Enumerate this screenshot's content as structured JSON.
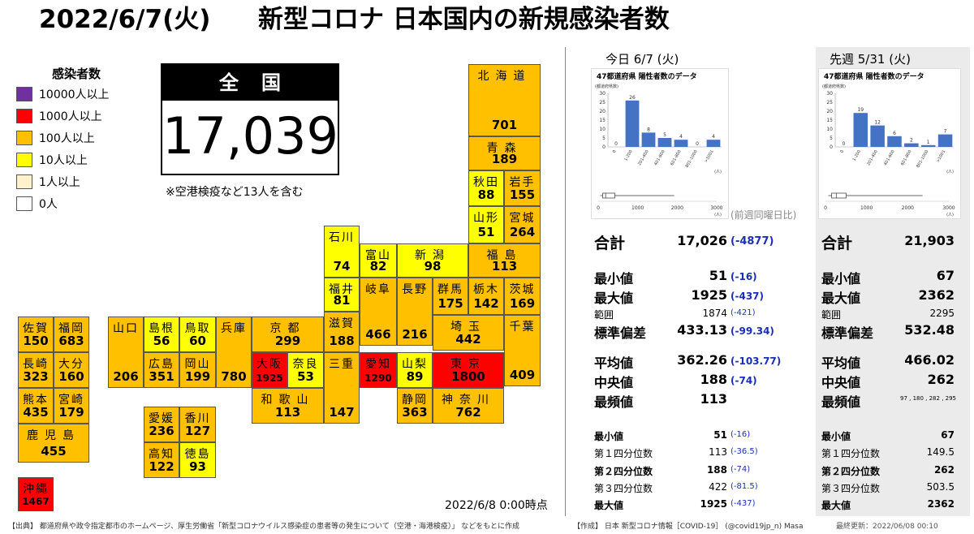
{
  "title": {
    "date": "2022/6/7(火)",
    "text": "新型コロナ 日本国内の新規感染者数"
  },
  "legend": {
    "title": "感染者数",
    "items": [
      {
        "label": "10000人以上",
        "color": "#7030a0"
      },
      {
        "label": "1000人以上",
        "color": "#ff0000"
      },
      {
        "label": "100人以上",
        "color": "#ffc000"
      },
      {
        "label": "10人以上",
        "color": "#ffff00"
      },
      {
        "label": "1人以上",
        "color": "#fff2cc"
      },
      {
        "label": "0人",
        "color": "#ffffff"
      }
    ]
  },
  "national": {
    "header": "全国",
    "value": "17,039",
    "note": "※空港検疫など13人を含む"
  },
  "timestamp": "2022/6/8 0:00時点",
  "prefectures": [
    {
      "name": "北海道",
      "value": "701"
    },
    {
      "name": "青森",
      "value": "189"
    },
    {
      "name": "秋田",
      "value": "88"
    },
    {
      "name": "岩手",
      "value": "155"
    },
    {
      "name": "山形",
      "value": "51"
    },
    {
      "name": "宮城",
      "value": "264"
    },
    {
      "name": "石川",
      "value": "74"
    },
    {
      "name": "富山",
      "value": "82"
    },
    {
      "name": "新潟",
      "value": "98"
    },
    {
      "name": "福島",
      "value": "113"
    },
    {
      "name": "福井",
      "value": "81"
    },
    {
      "name": "岐阜",
      "value": "466"
    },
    {
      "name": "長野",
      "value": "216"
    },
    {
      "name": "群馬",
      "value": "175"
    },
    {
      "name": "栃木",
      "value": "142"
    },
    {
      "name": "茨城",
      "value": "169"
    },
    {
      "name": "佐賀",
      "value": "150"
    },
    {
      "name": "福岡",
      "value": "683"
    },
    {
      "name": "山口",
      "value": "206"
    },
    {
      "name": "島根",
      "value": "56"
    },
    {
      "name": "鳥取",
      "value": "60"
    },
    {
      "name": "兵庫",
      "value": "780"
    },
    {
      "name": "京都",
      "value": "299"
    },
    {
      "name": "滋賀",
      "value": "188"
    },
    {
      "name": "埼玉",
      "value": "442"
    },
    {
      "name": "千葉",
      "value": "409"
    },
    {
      "name": "長崎",
      "value": "323"
    },
    {
      "name": "大分",
      "value": "160"
    },
    {
      "name": "広島",
      "value": "351"
    },
    {
      "name": "岡山",
      "value": "199"
    },
    {
      "name": "大阪",
      "value": "1925"
    },
    {
      "name": "奈良",
      "value": "53"
    },
    {
      "name": "三重",
      "value": "147"
    },
    {
      "name": "愛知",
      "value": "1290"
    },
    {
      "name": "山梨",
      "value": "89"
    },
    {
      "name": "東京",
      "value": "1800"
    },
    {
      "name": "熊本",
      "value": "435"
    },
    {
      "name": "宮崎",
      "value": "179"
    },
    {
      "name": "和歌山",
      "value": "113"
    },
    {
      "name": "静岡",
      "value": "363"
    },
    {
      "name": "神奈川",
      "value": "762"
    },
    {
      "name": "愛媛",
      "value": "236"
    },
    {
      "name": "香川",
      "value": "127"
    },
    {
      "name": "鹿児島",
      "value": "455"
    },
    {
      "name": "高知",
      "value": "122"
    },
    {
      "name": "徳島",
      "value": "93"
    },
    {
      "name": "沖縄",
      "value": "1467"
    }
  ],
  "today": {
    "header": "今日 6/7 (火)",
    "chart_title": "47都道府県 陽性者数のデータ",
    "comparison_label": "(前週同曜日比)",
    "total": {
      "label": "合計",
      "value": "17,026",
      "diff": "(-4877)"
    },
    "min": {
      "label": "最小値",
      "value": "51",
      "diff": "(-16)"
    },
    "max": {
      "label": "最大値",
      "value": "1925",
      "diff": "(-437)"
    },
    "range": {
      "label": "範囲",
      "value": "1874",
      "diff": "(-421)"
    },
    "std": {
      "label": "標準偏差",
      "value": "433.13",
      "diff": "(-99.34)"
    },
    "mean": {
      "label": "平均値",
      "value": "362.26",
      "diff": "(-103.77)"
    },
    "median": {
      "label": "中央値",
      "value": "188",
      "diff": "(-74)"
    },
    "mode": {
      "label": "最頻値",
      "value": "113"
    },
    "q_min": {
      "label": "最小値",
      "value": "51",
      "diff": "(-16)"
    },
    "q1": {
      "label": "第１四分位数",
      "value": "113",
      "diff": "(-36.5)"
    },
    "q2": {
      "label": "第２四分位数",
      "value": "188",
      "diff": "(-74)"
    },
    "q3": {
      "label": "第３四分位数",
      "value": "422",
      "diff": "(-81.5)"
    },
    "q_max": {
      "label": "最大値",
      "value": "1925",
      "diff": "(-437)"
    }
  },
  "last_week": {
    "header": "先週 5/31 (火)",
    "chart_title": "47都道府県 陽性者数のデータ",
    "total": {
      "label": "合計",
      "value": "21,903"
    },
    "min": {
      "label": "最小値",
      "value": "67"
    },
    "max": {
      "label": "最大値",
      "value": "2362"
    },
    "range": {
      "label": "範囲",
      "value": "2295"
    },
    "std": {
      "label": "標準偏差",
      "value": "532.48"
    },
    "mean": {
      "label": "平均値",
      "value": "466.02"
    },
    "median": {
      "label": "中央値",
      "value": "262"
    },
    "mode": {
      "label": "最頻値",
      "value": "97 , 180 , 282 , 295"
    },
    "q_min": {
      "label": "最小値",
      "value": "67"
    },
    "q1": {
      "label": "第１四分位数",
      "value": "149.5"
    },
    "q2": {
      "label": "第２四分位数",
      "value": "262"
    },
    "q3": {
      "label": "第３四分位数",
      "value": "503.5"
    },
    "q_max": {
      "label": "最大値",
      "value": "2362"
    }
  },
  "chart_data": [
    {
      "type": "bar",
      "ylabel": "(都道府県数)",
      "xlabel": "(人)",
      "categories": [
        "0",
        "1-200",
        "201-400",
        "401-600",
        "601-800",
        "801-1000",
        ">1001"
      ],
      "values": [
        0,
        26,
        8,
        5,
        4,
        0,
        4
      ],
      "ylim": [
        0,
        30
      ],
      "yticks": [
        "0",
        "5",
        "10",
        "15",
        "20",
        "25",
        "30"
      ],
      "boxplot": {
        "min": 51,
        "q1": 113,
        "median": 188,
        "q3": 422,
        "max": 1925,
        "xlim": [
          0,
          3000
        ],
        "xticks": [
          "0",
          "1000",
          "2000",
          "3000"
        ]
      }
    },
    {
      "type": "bar",
      "ylabel": "(都道府県数)",
      "xlabel": "(人)",
      "categories": [
        "0",
        "1-200",
        "201-400",
        "401-600",
        "601-800",
        "801-1000",
        ">1001"
      ],
      "values": [
        0,
        19,
        12,
        6,
        2,
        1,
        7
      ],
      "ylim": [
        0,
        30
      ],
      "yticks": [
        "0",
        "5",
        "10",
        "15",
        "20",
        "25",
        "30"
      ],
      "boxplot": {
        "min": 67,
        "q1": 149.5,
        "median": 262,
        "q3": 503.5,
        "max": 2362,
        "xlim": [
          0,
          3000
        ],
        "xticks": [
          "0",
          "1000",
          "2000",
          "3000"
        ]
      }
    }
  ],
  "footer": {
    "source": "【出典】 都道府県や政令指定都市のホームページ、厚生労働省「新型コロナウイルス感染症の患者等の発生について（空港・海港検疫）」 などをもとに作成",
    "author": "【作成】 日本 新型コロナ情報［COVID-19］ (@covid19jp_n)  Masa",
    "updated": "最終更新：2022/06/08 00:10"
  }
}
